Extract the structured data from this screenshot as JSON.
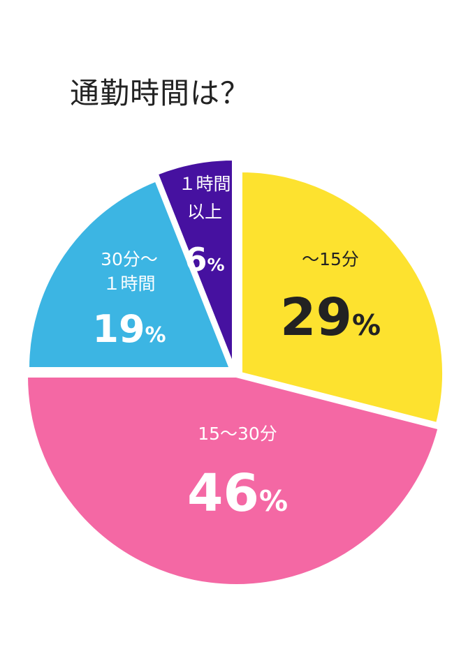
{
  "title": "通勤時間は？",
  "chart_data": {
    "type": "pie",
    "title": "通勤時間は？",
    "slices": [
      {
        "label": "〜15分",
        "label_lines": [
          "〜15分"
        ],
        "value": 29,
        "value_text": "29%",
        "color": "#fde22f",
        "text_color": "#222222"
      },
      {
        "label": "15〜30分",
        "label_lines": [
          "15〜30分"
        ],
        "value": 46,
        "value_text": "46%",
        "color": "#f468a4",
        "text_color": "#ffffff"
      },
      {
        "label": "30分〜 1時間",
        "label_lines": [
          "30分〜",
          "１時間"
        ],
        "value": 19,
        "value_text": "19%",
        "color": "#3cb5e3",
        "text_color": "#ffffff"
      },
      {
        "label": "1時間以上",
        "label_lines": [
          "１時間",
          "以上"
        ],
        "value": 6,
        "value_text": "6%",
        "color": "#4611a0",
        "text_color": "#ffffff"
      }
    ],
    "start_direction": "top",
    "direction": "clockwise",
    "exploded": true,
    "legend": "none"
  }
}
